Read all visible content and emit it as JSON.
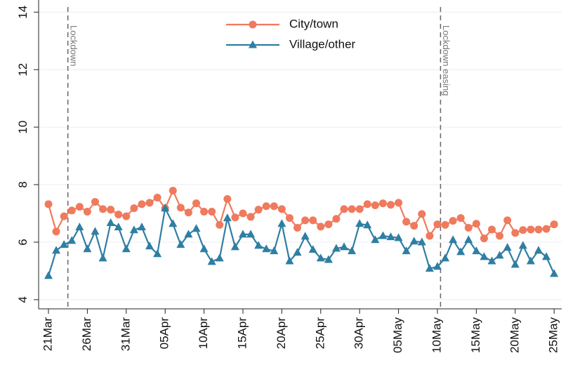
{
  "chart_data": {
    "type": "line",
    "categories": [
      "21Mar",
      null,
      null,
      null,
      null,
      "26Mar",
      null,
      null,
      null,
      null,
      "31Mar",
      null,
      null,
      null,
      null,
      "05Apr",
      null,
      null,
      null,
      null,
      "10Apr",
      null,
      null,
      null,
      null,
      "15Apr",
      null,
      null,
      null,
      null,
      "20Apr",
      null,
      null,
      null,
      null,
      "25Apr",
      null,
      null,
      null,
      null,
      "30Apr",
      null,
      null,
      null,
      null,
      "05May",
      null,
      null,
      null,
      null,
      "10May",
      null,
      null,
      null,
      null,
      "15May",
      null,
      null,
      null,
      null,
      "20May",
      null,
      null,
      null,
      null,
      "25May"
    ],
    "series": [
      {
        "name": "City/town",
        "color": "#f07a5d",
        "marker": "circle",
        "values": [
          7.32,
          6.37,
          6.9,
          7.1,
          7.23,
          7.06,
          7.4,
          7.15,
          7.13,
          6.96,
          6.9,
          7.18,
          7.32,
          7.37,
          7.55,
          7.18,
          7.79,
          7.2,
          7.03,
          7.35,
          7.06,
          7.06,
          6.6,
          7.5,
          6.86,
          7.0,
          6.88,
          7.13,
          7.25,
          7.25,
          7.15,
          6.84,
          6.5,
          6.76,
          6.76,
          6.54,
          6.62,
          6.81,
          7.15,
          7.15,
          7.15,
          7.32,
          7.28,
          7.35,
          7.3,
          7.37,
          6.71,
          6.57,
          6.98,
          6.22,
          6.62,
          6.6,
          6.74,
          6.84,
          6.5,
          6.64,
          6.13,
          6.44,
          6.22,
          6.76,
          6.32,
          6.42,
          6.44,
          6.44,
          6.46,
          6.62
        ]
      },
      {
        "name": "Village/other",
        "color": "#2f7ea3",
        "marker": "triangle",
        "values": [
          4.83,
          5.71,
          5.91,
          6.05,
          6.52,
          5.76,
          6.37,
          5.44,
          6.67,
          6.52,
          5.76,
          6.42,
          6.52,
          5.86,
          5.59,
          7.18,
          6.64,
          5.91,
          6.27,
          6.47,
          5.76,
          5.32,
          5.44,
          6.84,
          5.83,
          6.27,
          6.27,
          5.88,
          5.76,
          5.69,
          6.64,
          5.34,
          5.64,
          6.2,
          5.74,
          5.44,
          5.39,
          5.78,
          5.83,
          5.69,
          6.64,
          6.59,
          6.08,
          6.22,
          6.18,
          6.15,
          5.69,
          6.03,
          6.0,
          5.08,
          5.15,
          5.44,
          6.08,
          5.66,
          6.08,
          5.69,
          5.49,
          5.34,
          5.54,
          5.81,
          5.22,
          5.88,
          5.34,
          5.71,
          5.49,
          4.9
        ]
      }
    ],
    "ylim": [
      3.68,
      14.3
    ],
    "yticks": [
      4,
      6,
      8,
      10,
      12,
      14
    ],
    "grid": true,
    "annotations": [
      {
        "text": "Lockdown",
        "x": 2.5
      },
      {
        "text": "Lockdown easing",
        "x": 50.4
      }
    ]
  }
}
